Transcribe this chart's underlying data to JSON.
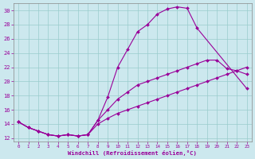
{
  "xlabel": "Windchill (Refroidissement éolien,°C)",
  "bg_color": "#cce8ee",
  "line_color": "#990099",
  "grid_color": "#99cccc",
  "xlim": [
    -0.5,
    23.5
  ],
  "ylim": [
    11.5,
    31.0
  ],
  "xticks": [
    0,
    1,
    2,
    3,
    4,
    5,
    6,
    7,
    8,
    9,
    10,
    11,
    12,
    13,
    14,
    15,
    16,
    17,
    18,
    19,
    20,
    21,
    22,
    23
  ],
  "yticks": [
    12,
    14,
    16,
    18,
    20,
    22,
    24,
    26,
    28,
    30
  ],
  "curve1_x": [
    0,
    1,
    2,
    3,
    4,
    5,
    6,
    7,
    8,
    9,
    10,
    11,
    12,
    13,
    14,
    15,
    16,
    17,
    18,
    23
  ],
  "curve1_y": [
    14.3,
    13.5,
    13.0,
    12.5,
    12.3,
    12.5,
    12.3,
    12.5,
    14.5,
    17.8,
    22.0,
    24.5,
    27.0,
    28.0,
    29.5,
    30.2,
    30.5,
    30.3,
    27.5,
    19.0
  ],
  "curve2_x": [
    0,
    1,
    2,
    3,
    4,
    5,
    6,
    7,
    8,
    9,
    10,
    11,
    12,
    13,
    14,
    15,
    16,
    17,
    18,
    19,
    20,
    21,
    22,
    23
  ],
  "curve2_y": [
    14.3,
    13.5,
    13.0,
    12.5,
    12.3,
    12.5,
    12.3,
    12.5,
    14.5,
    16.0,
    17.5,
    18.5,
    19.5,
    20.0,
    20.5,
    21.0,
    21.5,
    22.0,
    22.5,
    23.0,
    23.0,
    21.8,
    21.5,
    21.0
  ],
  "curve3_x": [
    0,
    1,
    2,
    3,
    4,
    5,
    6,
    7,
    8,
    9,
    10,
    11,
    12,
    13,
    14,
    15,
    16,
    17,
    18,
    19,
    20,
    21,
    22,
    23
  ],
  "curve3_y": [
    14.3,
    13.5,
    13.0,
    12.5,
    12.3,
    12.5,
    12.3,
    12.5,
    14.0,
    14.8,
    15.5,
    16.0,
    16.5,
    17.0,
    17.5,
    18.0,
    18.5,
    19.0,
    19.5,
    20.0,
    20.5,
    21.0,
    21.5,
    22.0
  ]
}
